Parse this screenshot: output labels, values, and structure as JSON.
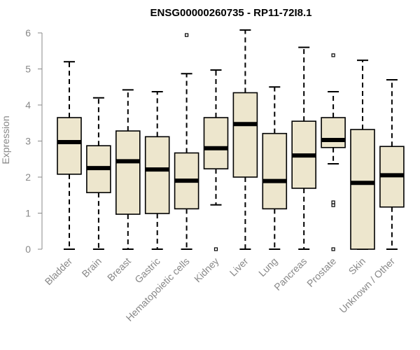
{
  "chart_data": {
    "type": "boxplot",
    "title": "ENSG00000260735 - RP11-72I8.1",
    "ylabel": "Expression",
    "ylim": [
      0,
      6.2
    ],
    "yticks": [
      "0",
      "1",
      "2",
      "3",
      "4",
      "5",
      "6"
    ],
    "colors": {
      "box_fill": "#ede6cd",
      "stroke": "#000000",
      "axis": "#888888"
    },
    "categories": [
      "Bladder",
      "Brain",
      "Breast",
      "Gastric",
      "Hematopoietic cells",
      "Kidney",
      "Liver",
      "Lung",
      "Pancreas",
      "Prostate",
      "Skin",
      "Unknown / Other"
    ],
    "boxes": [
      {
        "min": 0,
        "q1": 2.08,
        "median": 2.97,
        "q3": 3.65,
        "max": 5.2,
        "outliers": []
      },
      {
        "min": 0,
        "q1": 1.57,
        "median": 2.25,
        "q3": 2.87,
        "max": 4.2,
        "outliers": []
      },
      {
        "min": 0,
        "q1": 0.97,
        "median": 2.44,
        "q3": 3.28,
        "max": 4.42,
        "outliers": []
      },
      {
        "min": 0,
        "q1": 0.99,
        "median": 2.21,
        "q3": 3.12,
        "max": 4.37,
        "outliers": []
      },
      {
        "min": 0,
        "q1": 1.12,
        "median": 1.9,
        "q3": 2.67,
        "max": 4.87,
        "outliers": [
          5.94
        ]
      },
      {
        "min": 1.23,
        "q1": 2.23,
        "median": 2.8,
        "q3": 3.65,
        "max": 4.97,
        "outliers": [
          0
        ]
      },
      {
        "min": 0,
        "q1": 2.0,
        "median": 3.47,
        "q3": 4.34,
        "max": 6.08,
        "outliers": []
      },
      {
        "min": 0,
        "q1": 1.12,
        "median": 1.89,
        "q3": 3.21,
        "max": 4.5,
        "outliers": []
      },
      {
        "min": 0,
        "q1": 1.69,
        "median": 2.6,
        "q3": 3.55,
        "max": 5.6,
        "outliers": []
      },
      {
        "min": 2.37,
        "q1": 2.82,
        "median": 3.03,
        "q3": 3.65,
        "max": 4.37,
        "outliers": [
          5.38,
          1.3,
          1.22,
          0
        ]
      },
      {
        "min": 0,
        "q1": 0,
        "median": 1.84,
        "q3": 3.32,
        "max": 5.24,
        "outliers": []
      },
      {
        "min": 0,
        "q1": 1.17,
        "median": 2.05,
        "q3": 2.85,
        "max": 4.7,
        "outliers": []
      }
    ]
  }
}
